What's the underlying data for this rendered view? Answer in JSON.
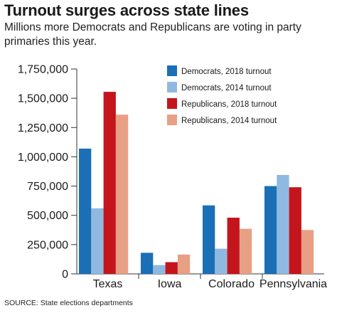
{
  "title": "Turnout surges across state lines",
  "subtitle": "Millions more Democrats and Republicans are voting in party primaries this year.",
  "source": "SOURCE: State elections departments",
  "chart_data": {
    "type": "bar",
    "categories": [
      "Texas",
      "Iowa",
      "Colorado",
      "Pennsylvania"
    ],
    "series": [
      {
        "name": "Democrats, 2018 turnout",
        "color": "#1a6fb5",
        "values": [
          1070000,
          180000,
          585000,
          750000
        ]
      },
      {
        "name": "Democrats, 2014 turnout",
        "color": "#8fb9e0",
        "values": [
          560000,
          75000,
          215000,
          845000
        ]
      },
      {
        "name": "Republicans, 2018 turnout",
        "color": "#c4151c",
        "values": [
          1555000,
          100000,
          480000,
          740000
        ]
      },
      {
        "name": "Republicans, 2014 turnout",
        "color": "#e8a085",
        "values": [
          1360000,
          165000,
          385000,
          375000
        ]
      }
    ],
    "yticks": [
      "0",
      "250,000",
      "500,000",
      "750,000",
      "1,000,000",
      "1,250,000",
      "1,500,000",
      "1,750,000"
    ],
    "ylim": [
      0,
      1750000
    ],
    "grid": false,
    "legend_position": "top-right"
  }
}
